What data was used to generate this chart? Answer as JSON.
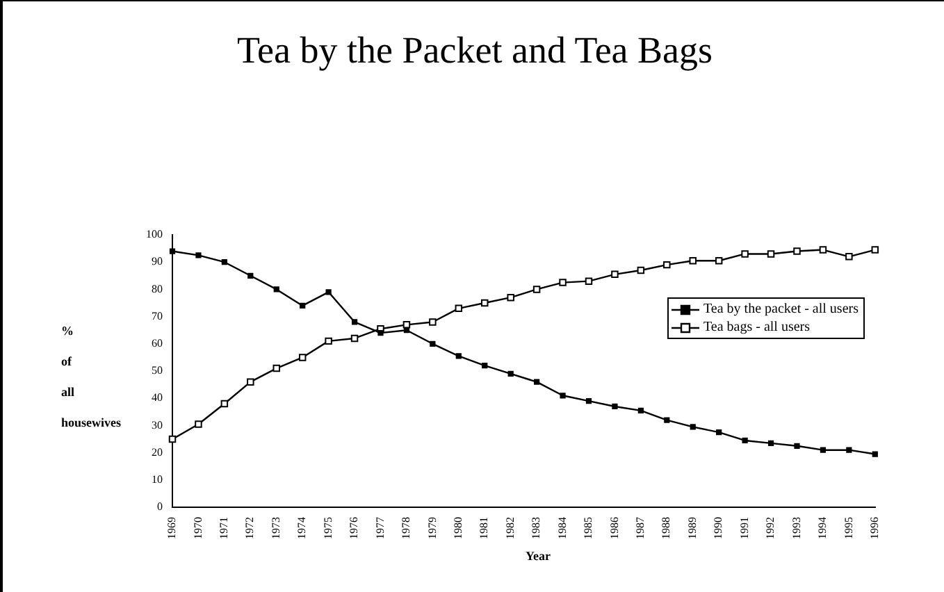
{
  "chart_data": {
    "type": "line",
    "title": "Tea by the Packet and Tea Bags",
    "xlabel": "Year",
    "ylabel": "% of all housewives",
    "categories": [
      "1969",
      "1970",
      "1971",
      "1972",
      "1973",
      "1974",
      "1975",
      "1976",
      "1977",
      "1978",
      "1979",
      "1980",
      "1981",
      "1982",
      "1983",
      "1984",
      "1985",
      "1986",
      "1987",
      "1988",
      "1989",
      "1990",
      "1991",
      "1992",
      "1993",
      "1994",
      "1995",
      "1996"
    ],
    "series": [
      {
        "name": "Tea by the packet - all users",
        "color": "#000000",
        "values": [
          94,
          92.5,
          90,
          85,
          80,
          74,
          79,
          68,
          64,
          65,
          60,
          55.5,
          52,
          49,
          46,
          41,
          39,
          37,
          35.5,
          32,
          29.5,
          27.5,
          24.5,
          23.5,
          22.5,
          21,
          21,
          19.5
        ]
      },
      {
        "name": "Tea bags - all users",
        "color": "#000000",
        "values": [
          25,
          30.5,
          38,
          46,
          51,
          55,
          61,
          62,
          65.5,
          67,
          68,
          73,
          75,
          77,
          80,
          82.5,
          83,
          85.5,
          87,
          89,
          90.5,
          90.5,
          93,
          93,
          94,
          94.5,
          92,
          94.5
        ]
      }
    ],
    "ylim": [
      0,
      100
    ],
    "yticks": [
      0,
      10,
      20,
      30,
      40,
      50,
      60,
      70,
      80,
      90,
      100
    ],
    "grid": false,
    "legend": "right",
    "marker": "square",
    "line_style": "solid"
  }
}
